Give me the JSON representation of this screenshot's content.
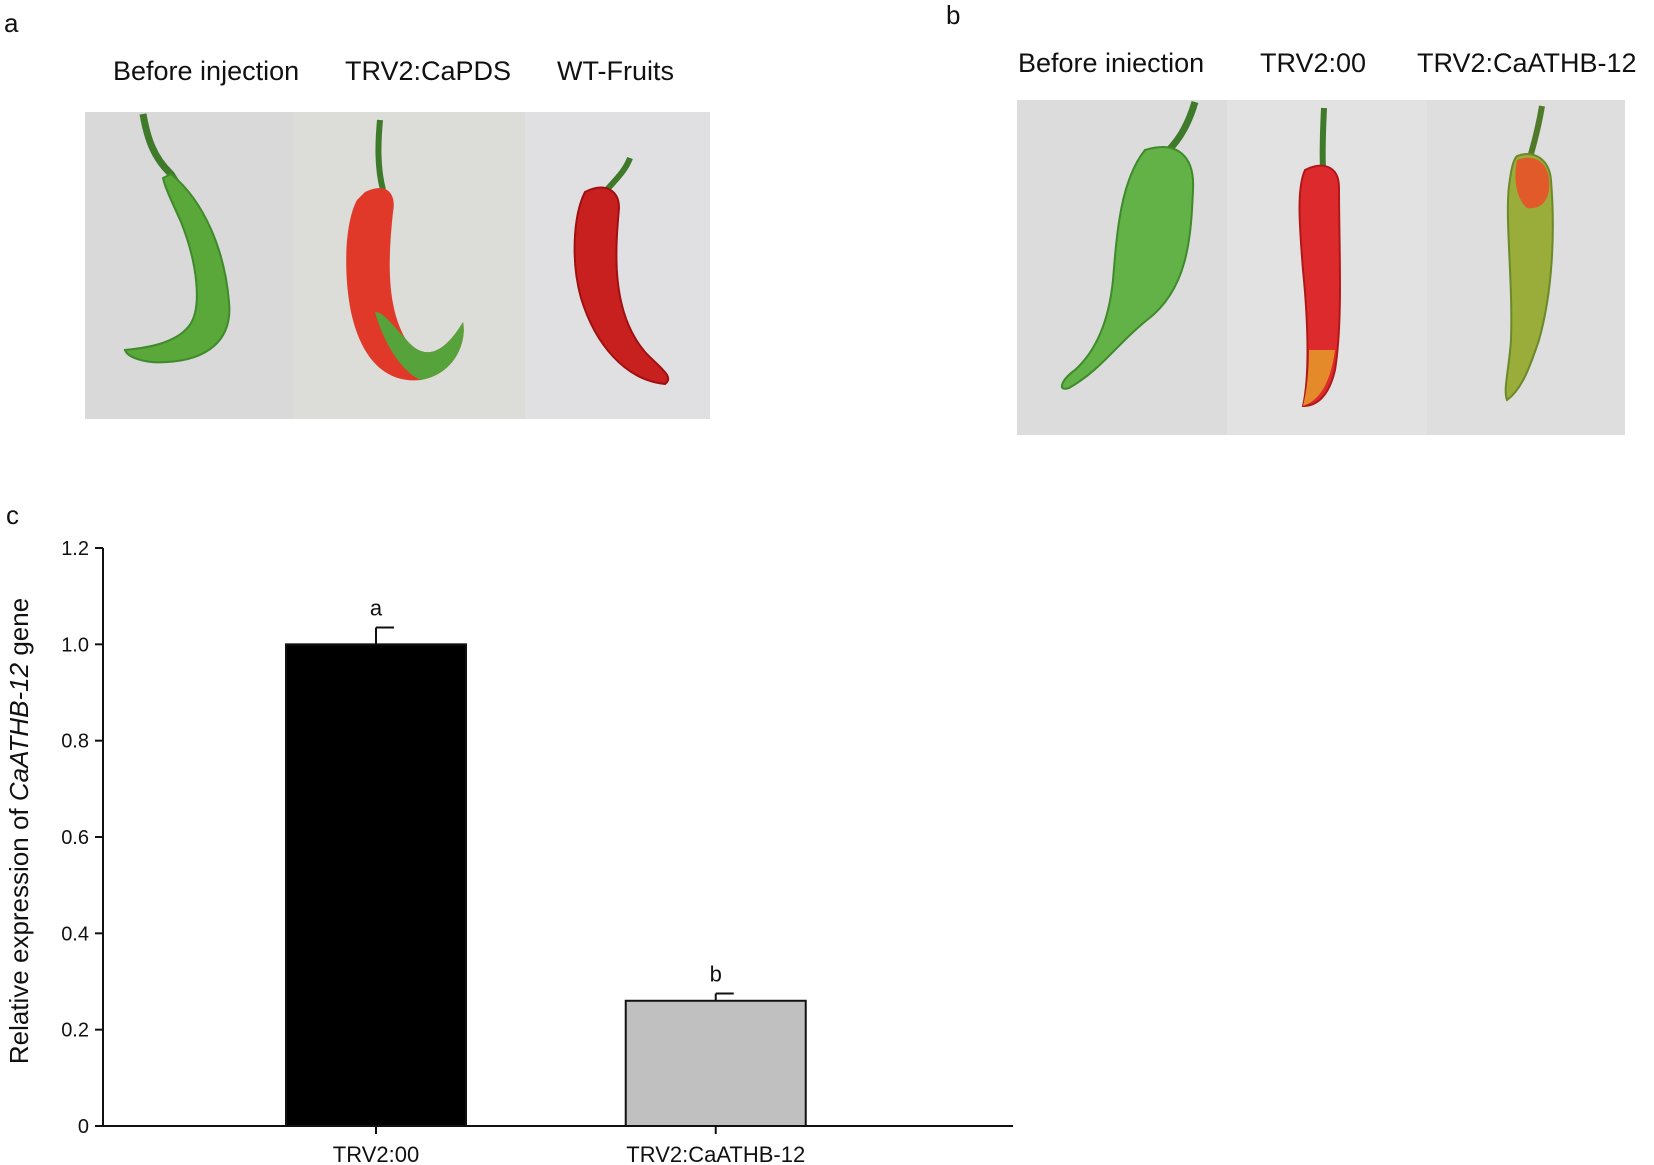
{
  "panel_a": {
    "letter": "a",
    "labels": [
      "Before injection",
      "TRV2:CaPDS",
      "WT-Fruits"
    ]
  },
  "panel_b": {
    "letter": "b",
    "labels": [
      "Before iniection",
      "TRV2:00",
      "TRV2:CaATHB-12"
    ]
  },
  "panel_c": {
    "letter": "c"
  },
  "colors": {
    "bar_control": "#000000",
    "bar_silenced": "#c0c0c0",
    "fruit_green": "#5aa83a",
    "fruit_red": "#d8282a",
    "photo_bg": "#dedede"
  },
  "chart_data": {
    "type": "bar",
    "title": "",
    "xlabel": "",
    "ylabel_prefix": "Relative expression of ",
    "ylabel_italic": "CaATHB-12",
    "ylabel_suffix": " gene",
    "categories": [
      "TRV2:00",
      "TRV2:CaATHB-12"
    ],
    "values": [
      1.0,
      0.26
    ],
    "errors": [
      0.035,
      0.015
    ],
    "significance": [
      "a",
      "b"
    ],
    "bar_colors": [
      "#000000",
      "#c0c0c0"
    ],
    "ylim": [
      0,
      1.2
    ],
    "yticks": [
      "0",
      "0.2",
      "0.4",
      "0.6",
      "0.8",
      "1.0",
      "1.2"
    ],
    "grid": false,
    "legend": "none"
  }
}
